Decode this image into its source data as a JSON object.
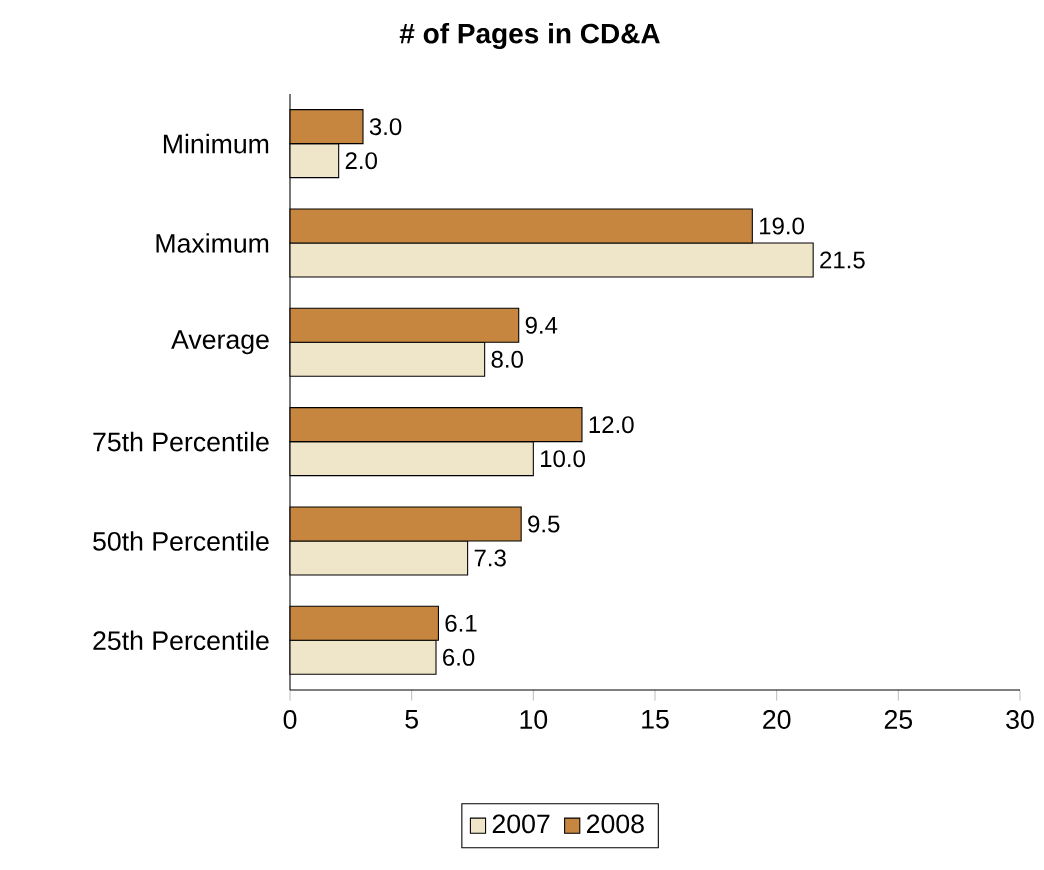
{
  "chart_data": {
    "type": "bar",
    "orientation": "horizontal",
    "title": "# of Pages in CD&A",
    "categories": [
      "Minimum",
      "Maximum",
      "Average",
      "75th Percentile",
      "50th Percentile",
      "25th Percentile"
    ],
    "series": [
      {
        "name": "2007",
        "color": "#efe5c8",
        "values": [
          2.0,
          21.5,
          8.0,
          10.0,
          7.3,
          6.0
        ],
        "value_labels": [
          "2.0",
          "21.5",
          "8.0",
          "10.0",
          "7.3",
          "6.0"
        ]
      },
      {
        "name": "2008",
        "color": "#c68640",
        "values": [
          3.0,
          19.0,
          9.4,
          12.0,
          9.5,
          6.1
        ],
        "value_labels": [
          "3.0",
          "19.0",
          "9.4",
          "12.0",
          "9.5",
          "6.1"
        ]
      }
    ],
    "xlim": [
      0,
      30
    ],
    "xticks": [
      0,
      5,
      10,
      15,
      20,
      25,
      30
    ],
    "legend": "bottom"
  }
}
